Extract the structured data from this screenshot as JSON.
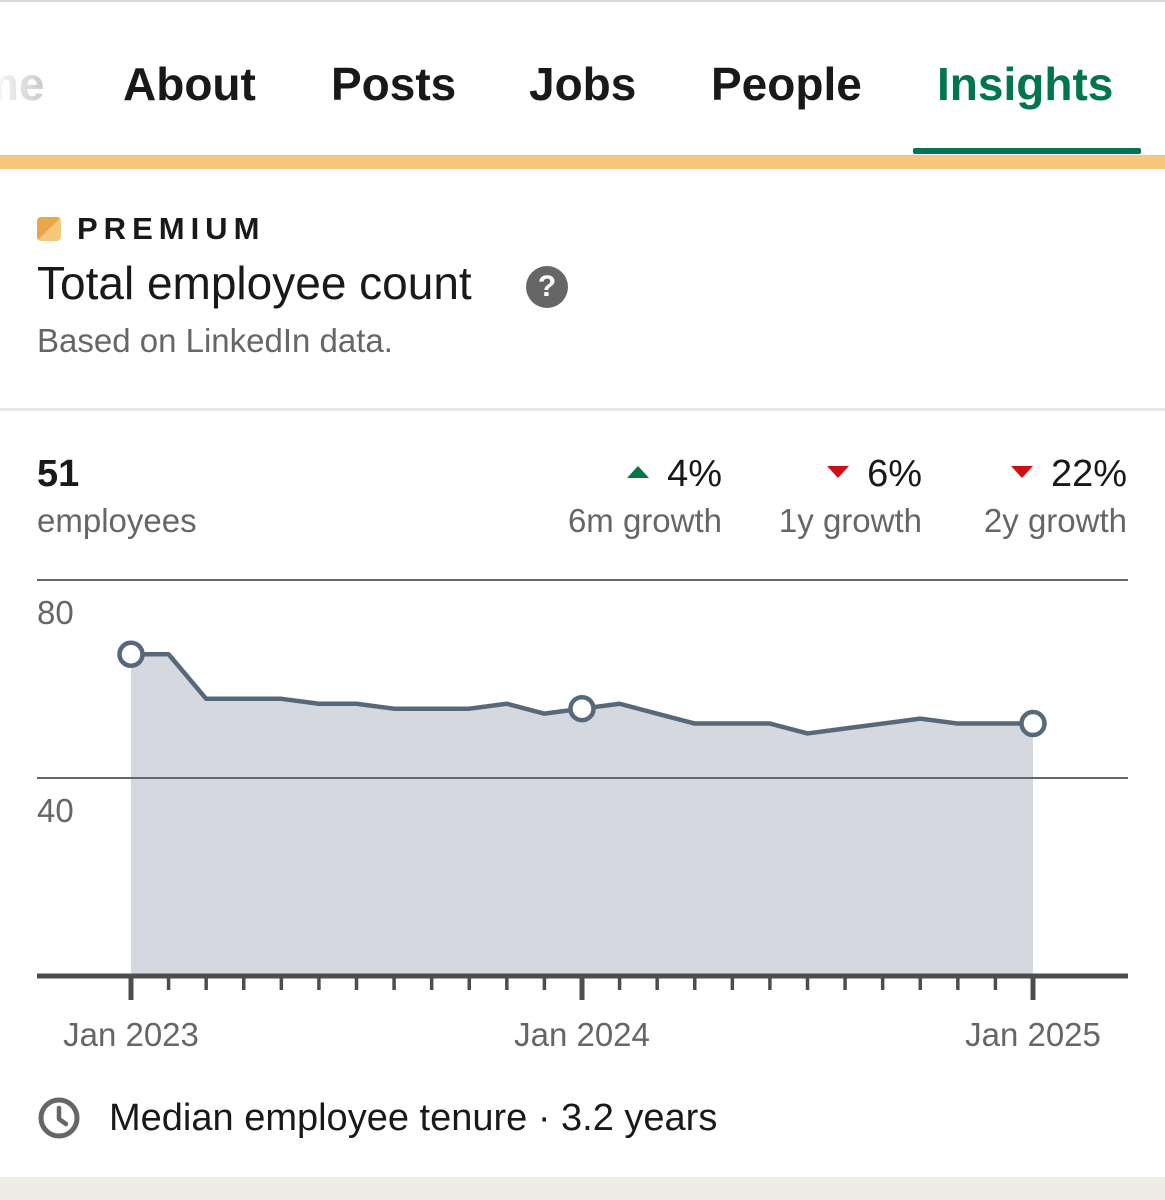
{
  "tabs": [
    {
      "label": "me",
      "active": false
    },
    {
      "label": "About",
      "active": false
    },
    {
      "label": "Posts",
      "active": false
    },
    {
      "label": "Jobs",
      "active": false
    },
    {
      "label": "People",
      "active": false
    },
    {
      "label": "Insights",
      "active": true
    }
  ],
  "colors": {
    "active_tab": "#01754f",
    "premium_bar": "#f8c77e",
    "growth_up": "#057642",
    "growth_down": "#cc1016",
    "series_line": "#56687a",
    "series_fill": "#d5d9df"
  },
  "card": {
    "premium_label": "PREMIUM",
    "title": "Total employee count",
    "help_icon": "question-circle-icon",
    "subtitle": "Based on LinkedIn data."
  },
  "stats": {
    "count": "51",
    "count_label": "employees",
    "growth": [
      {
        "value": "4%",
        "label": "6m growth",
        "direction": "up"
      },
      {
        "value": "6%",
        "label": "1y growth",
        "direction": "down"
      },
      {
        "value": "22%",
        "label": "2y growth",
        "direction": "down"
      }
    ]
  },
  "chart_data": {
    "type": "area",
    "x": [
      "2023-01",
      "2023-02",
      "2023-03",
      "2023-04",
      "2023-05",
      "2023-06",
      "2023-07",
      "2023-08",
      "2023-09",
      "2023-10",
      "2023-11",
      "2023-12",
      "2024-01",
      "2024-02",
      "2024-03",
      "2024-04",
      "2024-05",
      "2024-06",
      "2024-07",
      "2024-08",
      "2024-09",
      "2024-10",
      "2024-11",
      "2024-12",
      "2025-01"
    ],
    "series": [
      {
        "values": [
          65,
          65,
          56,
          56,
          56,
          55,
          55,
          54,
          54,
          54,
          55,
          53,
          54,
          55,
          53,
          51,
          51,
          51,
          49,
          50,
          51,
          52,
          51,
          51,
          51
        ]
      }
    ],
    "highlighted_points": [
      "2023-01",
      "2024-01",
      "2025-01"
    ],
    "ylim": [
      0,
      80
    ],
    "yticks": [
      40,
      80
    ],
    "ytick_labels": [
      "40",
      "80"
    ],
    "xtick_labels": [
      {
        "x": "2023-01",
        "label": "Jan 2023"
      },
      {
        "x": "2024-01",
        "label": "Jan 2024"
      },
      {
        "x": "2025-01",
        "label": "Jan 2025"
      }
    ],
    "grid": true,
    "legend": "none"
  },
  "footer": {
    "tenure_icon": "clock-icon",
    "tenure_text": "Median employee tenure · 3.2 years"
  }
}
